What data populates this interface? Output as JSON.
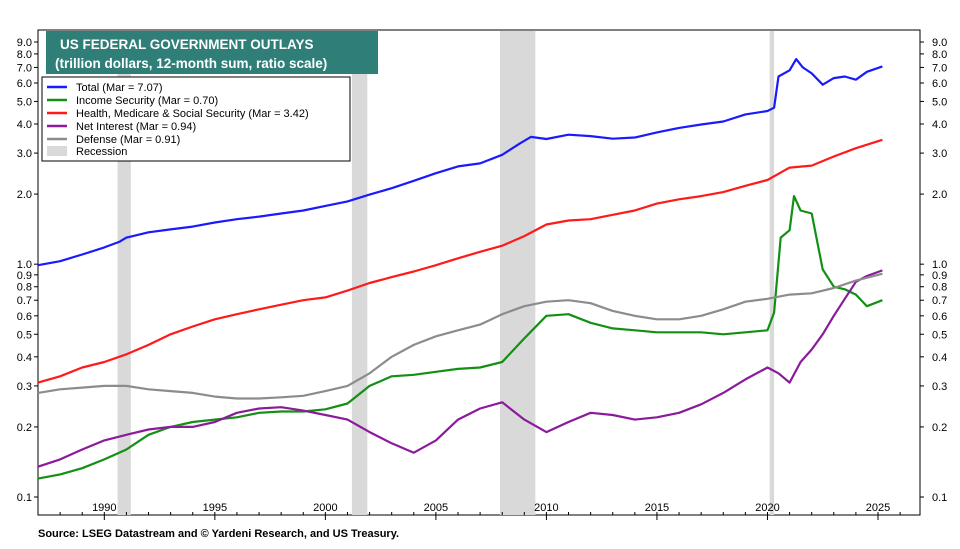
{
  "chart_data": {
    "type": "line",
    "title": "US FEDERAL GOVERNMENT OUTLAYS",
    "subtitle": "(trillion dollars, 12-month sum, ratio scale)",
    "source": "Source: LSEG Datastream and © Yardeni Research, and US Treasury.",
    "y_scale": "log",
    "ylim": [
      0.1,
      9.0
    ],
    "xlim": [
      1987.0,
      2026.9
    ],
    "y_ticks": [
      "0.1",
      "0.2",
      "0.3",
      "0.4",
      "0.5",
      "0.6",
      "0.7",
      "0.8",
      "0.9",
      "1.0",
      "2.0",
      "3.0",
      "4.0",
      "5.0",
      "6.0",
      "7.0",
      "8.0",
      "9.0"
    ],
    "x_ticks": [
      "1990",
      "1995",
      "2000",
      "2005",
      "2010",
      "2015",
      "2020",
      "2025"
    ],
    "grid": false,
    "legend_position": "top-left",
    "recessions": [
      [
        1990.6,
        1991.2
      ],
      [
        2001.2,
        2001.9
      ],
      [
        2007.9,
        2009.5
      ],
      [
        2020.1,
        2020.3
      ]
    ],
    "series": [
      {
        "name": "Total  (Mar = 7.07)",
        "color": "#1a1aff",
        "points": [
          [
            1987.0,
            0.99
          ],
          [
            1988,
            1.03
          ],
          [
            1989,
            1.1
          ],
          [
            1990,
            1.18
          ],
          [
            1990.7,
            1.25
          ],
          [
            1991,
            1.3
          ],
          [
            1992,
            1.37
          ],
          [
            1993,
            1.41
          ],
          [
            1994,
            1.45
          ],
          [
            1995,
            1.51
          ],
          [
            1996,
            1.56
          ],
          [
            1997,
            1.6
          ],
          [
            1998,
            1.65
          ],
          [
            1999,
            1.7
          ],
          [
            2000,
            1.78
          ],
          [
            2001,
            1.86
          ],
          [
            2002,
            1.99
          ],
          [
            2003,
            2.12
          ],
          [
            2004,
            2.28
          ],
          [
            2005,
            2.46
          ],
          [
            2006,
            2.63
          ],
          [
            2007,
            2.71
          ],
          [
            2008,
            2.95
          ],
          [
            2008.8,
            3.3
          ],
          [
            2009.3,
            3.52
          ],
          [
            2010,
            3.45
          ],
          [
            2011,
            3.6
          ],
          [
            2012,
            3.55
          ],
          [
            2013,
            3.46
          ],
          [
            2014,
            3.5
          ],
          [
            2015,
            3.68
          ],
          [
            2016,
            3.85
          ],
          [
            2017,
            3.98
          ],
          [
            2018,
            4.1
          ],
          [
            2019,
            4.4
          ],
          [
            2020.0,
            4.55
          ],
          [
            2020.3,
            4.7
          ],
          [
            2020.5,
            6.4
          ],
          [
            2021.0,
            6.8
          ],
          [
            2021.3,
            7.6
          ],
          [
            2021.6,
            7.0
          ],
          [
            2022.0,
            6.6
          ],
          [
            2022.5,
            5.9
          ],
          [
            2023.0,
            6.3
          ],
          [
            2023.5,
            6.4
          ],
          [
            2024.0,
            6.2
          ],
          [
            2024.5,
            6.7
          ],
          [
            2025.2,
            7.07
          ]
        ]
      },
      {
        "name": "Income Security (Mar = 0.70)",
        "color": "#139013",
        "points": [
          [
            1987.0,
            0.12
          ],
          [
            1988,
            0.125
          ],
          [
            1989,
            0.133
          ],
          [
            1990,
            0.145
          ],
          [
            1991,
            0.16
          ],
          [
            1992,
            0.185
          ],
          [
            1993,
            0.2
          ],
          [
            1994,
            0.21
          ],
          [
            1995,
            0.215
          ],
          [
            1996,
            0.22
          ],
          [
            1997,
            0.23
          ],
          [
            1998,
            0.233
          ],
          [
            1999,
            0.233
          ],
          [
            2000,
            0.238
          ],
          [
            2001,
            0.252
          ],
          [
            2002,
            0.3
          ],
          [
            2003,
            0.33
          ],
          [
            2004,
            0.335
          ],
          [
            2005,
            0.345
          ],
          [
            2006,
            0.355
          ],
          [
            2007,
            0.36
          ],
          [
            2008,
            0.38
          ],
          [
            2009,
            0.48
          ],
          [
            2010,
            0.6
          ],
          [
            2011,
            0.61
          ],
          [
            2012,
            0.56
          ],
          [
            2013,
            0.53
          ],
          [
            2014,
            0.52
          ],
          [
            2015,
            0.51
          ],
          [
            2016,
            0.51
          ],
          [
            2017,
            0.51
          ],
          [
            2018,
            0.5
          ],
          [
            2019,
            0.51
          ],
          [
            2020.0,
            0.52
          ],
          [
            2020.3,
            0.62
          ],
          [
            2020.6,
            1.3
          ],
          [
            2021.0,
            1.4
          ],
          [
            2021.2,
            1.96
          ],
          [
            2021.5,
            1.7
          ],
          [
            2022.0,
            1.65
          ],
          [
            2022.5,
            0.95
          ],
          [
            2023.0,
            0.8
          ],
          [
            2023.5,
            0.78
          ],
          [
            2024.0,
            0.74
          ],
          [
            2024.5,
            0.66
          ],
          [
            2025.2,
            0.7
          ]
        ]
      },
      {
        "name": "Health, Medicare & Social Security  (Mar = 3.42)",
        "color": "#ff1a1a",
        "points": [
          [
            1987.0,
            0.31
          ],
          [
            1988,
            0.33
          ],
          [
            1989,
            0.36
          ],
          [
            1990,
            0.38
          ],
          [
            1991,
            0.41
          ],
          [
            1992,
            0.45
          ],
          [
            1993,
            0.5
          ],
          [
            1994,
            0.54
          ],
          [
            1995,
            0.58
          ],
          [
            1996,
            0.61
          ],
          [
            1997,
            0.64
          ],
          [
            1998,
            0.67
          ],
          [
            1999,
            0.7
          ],
          [
            2000,
            0.72
          ],
          [
            2001,
            0.77
          ],
          [
            2002,
            0.83
          ],
          [
            2003,
            0.88
          ],
          [
            2004,
            0.93
          ],
          [
            2005,
            0.99
          ],
          [
            2006,
            1.06
          ],
          [
            2007,
            1.13
          ],
          [
            2008,
            1.2
          ],
          [
            2009,
            1.32
          ],
          [
            2010,
            1.48
          ],
          [
            2011,
            1.54
          ],
          [
            2012,
            1.56
          ],
          [
            2013,
            1.63
          ],
          [
            2014,
            1.7
          ],
          [
            2015,
            1.82
          ],
          [
            2016,
            1.9
          ],
          [
            2017,
            1.96
          ],
          [
            2018,
            2.04
          ],
          [
            2019,
            2.17
          ],
          [
            2020,
            2.3
          ],
          [
            2021,
            2.6
          ],
          [
            2022,
            2.65
          ],
          [
            2023,
            2.9
          ],
          [
            2024,
            3.15
          ],
          [
            2025.2,
            3.42
          ]
        ]
      },
      {
        "name": "Net Interest (Mar = 0.94)",
        "color": "#8b1a9c",
        "points": [
          [
            1987.0,
            0.135
          ],
          [
            1988,
            0.145
          ],
          [
            1989,
            0.16
          ],
          [
            1990,
            0.175
          ],
          [
            1991,
            0.185
          ],
          [
            1992,
            0.195
          ],
          [
            1993,
            0.2
          ],
          [
            1994,
            0.2
          ],
          [
            1995,
            0.21
          ],
          [
            1996,
            0.23
          ],
          [
            1997,
            0.24
          ],
          [
            1998,
            0.243
          ],
          [
            1999,
            0.235
          ],
          [
            2000,
            0.225
          ],
          [
            2001,
            0.215
          ],
          [
            2002,
            0.19
          ],
          [
            2003,
            0.17
          ],
          [
            2004,
            0.155
          ],
          [
            2005,
            0.175
          ],
          [
            2006,
            0.215
          ],
          [
            2007,
            0.24
          ],
          [
            2008,
            0.255
          ],
          [
            2009,
            0.215
          ],
          [
            2010,
            0.19
          ],
          [
            2011,
            0.21
          ],
          [
            2012,
            0.23
          ],
          [
            2013,
            0.225
          ],
          [
            2014,
            0.215
          ],
          [
            2015,
            0.22
          ],
          [
            2016,
            0.23
          ],
          [
            2017,
            0.25
          ],
          [
            2018,
            0.28
          ],
          [
            2019,
            0.32
          ],
          [
            2020,
            0.36
          ],
          [
            2020.5,
            0.34
          ],
          [
            2021,
            0.31
          ],
          [
            2021.5,
            0.38
          ],
          [
            2022,
            0.43
          ],
          [
            2022.5,
            0.5
          ],
          [
            2023,
            0.6
          ],
          [
            2023.5,
            0.71
          ],
          [
            2024,
            0.84
          ],
          [
            2024.5,
            0.89
          ],
          [
            2025.2,
            0.94
          ]
        ]
      },
      {
        "name": "Defense (Mar = 0.91)",
        "color": "#8c8c8c",
        "points": [
          [
            1987.0,
            0.28
          ],
          [
            1988,
            0.29
          ],
          [
            1989,
            0.295
          ],
          [
            1990,
            0.3
          ],
          [
            1991,
            0.3
          ],
          [
            1992,
            0.29
          ],
          [
            1993,
            0.285
          ],
          [
            1994,
            0.28
          ],
          [
            1995,
            0.27
          ],
          [
            1996,
            0.265
          ],
          [
            1997,
            0.265
          ],
          [
            1998,
            0.268
          ],
          [
            1999,
            0.272
          ],
          [
            2000,
            0.285
          ],
          [
            2001,
            0.3
          ],
          [
            2002,
            0.34
          ],
          [
            2003,
            0.4
          ],
          [
            2004,
            0.45
          ],
          [
            2005,
            0.49
          ],
          [
            2006,
            0.52
          ],
          [
            2007,
            0.55
          ],
          [
            2008,
            0.61
          ],
          [
            2009,
            0.66
          ],
          [
            2010,
            0.69
          ],
          [
            2011,
            0.7
          ],
          [
            2012,
            0.68
          ],
          [
            2013,
            0.63
          ],
          [
            2014,
            0.6
          ],
          [
            2015,
            0.58
          ],
          [
            2016,
            0.58
          ],
          [
            2017,
            0.6
          ],
          [
            2018,
            0.64
          ],
          [
            2019,
            0.69
          ],
          [
            2020,
            0.71
          ],
          [
            2021,
            0.74
          ],
          [
            2022,
            0.75
          ],
          [
            2023,
            0.79
          ],
          [
            2024,
            0.85
          ],
          [
            2025.2,
            0.91
          ]
        ]
      }
    ],
    "legend_extra": "Recession"
  }
}
